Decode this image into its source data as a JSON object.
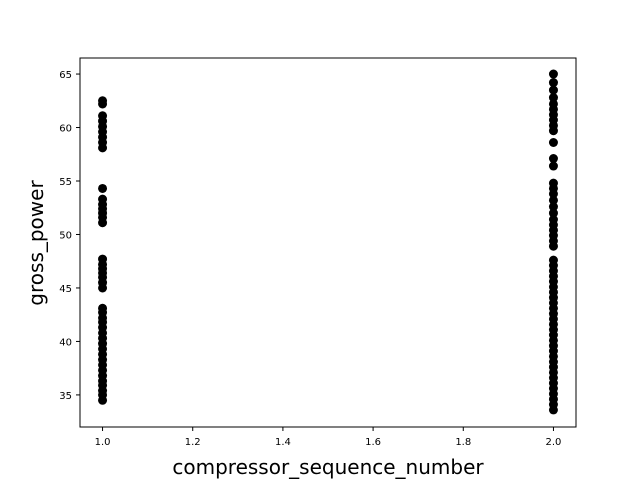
{
  "chart_data": {
    "type": "scatter",
    "title": "",
    "xlabel": "compressor_sequence_number",
    "ylabel": "gross_power",
    "xlim": [
      0.95,
      2.05
    ],
    "ylim": [
      32.0,
      66.5
    ],
    "xticks": [
      1.0,
      1.2,
      1.4,
      1.6,
      1.8,
      2.0
    ],
    "xtick_labels": [
      "1.0",
      "1.2",
      "1.4",
      "1.6",
      "1.8",
      "2.0"
    ],
    "yticks": [
      35,
      40,
      45,
      50,
      55,
      60,
      65
    ],
    "ytick_labels": [
      "35",
      "40",
      "45",
      "50",
      "55",
      "60",
      "65"
    ],
    "grid": false,
    "marker_color": "#000000",
    "series": [
      {
        "points": [
          [
            1.0,
            34.5
          ],
          [
            1.0,
            35.0
          ],
          [
            1.0,
            35.4
          ],
          [
            1.0,
            35.9
          ],
          [
            1.0,
            36.3
          ],
          [
            1.0,
            36.8
          ],
          [
            1.0,
            37.3
          ],
          [
            1.0,
            37.8
          ],
          [
            1.0,
            38.3
          ],
          [
            1.0,
            38.8
          ],
          [
            1.0,
            39.3
          ],
          [
            1.0,
            39.8
          ],
          [
            1.0,
            40.3
          ],
          [
            1.0,
            40.8
          ],
          [
            1.0,
            41.3
          ],
          [
            1.0,
            41.8
          ],
          [
            1.0,
            42.2
          ],
          [
            1.0,
            42.7
          ],
          [
            1.0,
            43.1
          ],
          [
            1.0,
            45.0
          ],
          [
            1.0,
            45.5
          ],
          [
            1.0,
            46.0
          ],
          [
            1.0,
            46.4
          ],
          [
            1.0,
            46.8
          ],
          [
            1.0,
            47.2
          ],
          [
            1.0,
            47.7
          ],
          [
            1.0,
            51.1
          ],
          [
            1.0,
            51.6
          ],
          [
            1.0,
            52.0
          ],
          [
            1.0,
            52.4
          ],
          [
            1.0,
            52.8
          ],
          [
            1.0,
            53.3
          ],
          [
            1.0,
            54.3
          ],
          [
            1.0,
            58.1
          ],
          [
            1.0,
            58.6
          ],
          [
            1.0,
            59.1
          ],
          [
            1.0,
            59.6
          ],
          [
            1.0,
            60.1
          ],
          [
            1.0,
            60.6
          ],
          [
            1.0,
            61.1
          ],
          [
            1.0,
            62.2
          ],
          [
            1.0,
            62.5
          ],
          [
            2.0,
            33.6
          ],
          [
            2.0,
            34.1
          ],
          [
            2.0,
            34.6
          ],
          [
            2.0,
            35.1
          ],
          [
            2.0,
            35.6
          ],
          [
            2.0,
            36.1
          ],
          [
            2.0,
            36.6
          ],
          [
            2.0,
            37.1
          ],
          [
            2.0,
            37.6
          ],
          [
            2.0,
            38.1
          ],
          [
            2.0,
            38.6
          ],
          [
            2.0,
            39.1
          ],
          [
            2.0,
            39.6
          ],
          [
            2.0,
            40.1
          ],
          [
            2.0,
            40.6
          ],
          [
            2.0,
            41.1
          ],
          [
            2.0,
            41.6
          ],
          [
            2.0,
            42.1
          ],
          [
            2.0,
            42.6
          ],
          [
            2.0,
            43.1
          ],
          [
            2.0,
            43.6
          ],
          [
            2.0,
            44.1
          ],
          [
            2.0,
            44.6
          ],
          [
            2.0,
            45.1
          ],
          [
            2.0,
            45.6
          ],
          [
            2.0,
            46.1
          ],
          [
            2.0,
            46.6
          ],
          [
            2.0,
            47.1
          ],
          [
            2.0,
            47.6
          ],
          [
            2.0,
            48.9
          ],
          [
            2.0,
            49.4
          ],
          [
            2.0,
            49.9
          ],
          [
            2.0,
            50.4
          ],
          [
            2.0,
            50.9
          ],
          [
            2.0,
            51.4
          ],
          [
            2.0,
            52.0
          ],
          [
            2.0,
            52.6
          ],
          [
            2.0,
            53.2
          ],
          [
            2.0,
            53.8
          ],
          [
            2.0,
            54.3
          ],
          [
            2.0,
            54.8
          ],
          [
            2.0,
            56.4
          ],
          [
            2.0,
            57.1
          ],
          [
            2.0,
            58.6
          ],
          [
            2.0,
            59.7
          ],
          [
            2.0,
            60.2
          ],
          [
            2.0,
            60.7
          ],
          [
            2.0,
            61.2
          ],
          [
            2.0,
            61.7
          ],
          [
            2.0,
            62.2
          ],
          [
            2.0,
            62.8
          ],
          [
            2.0,
            63.5
          ],
          [
            2.0,
            64.2
          ],
          [
            2.0,
            65.0
          ]
        ]
      }
    ]
  }
}
